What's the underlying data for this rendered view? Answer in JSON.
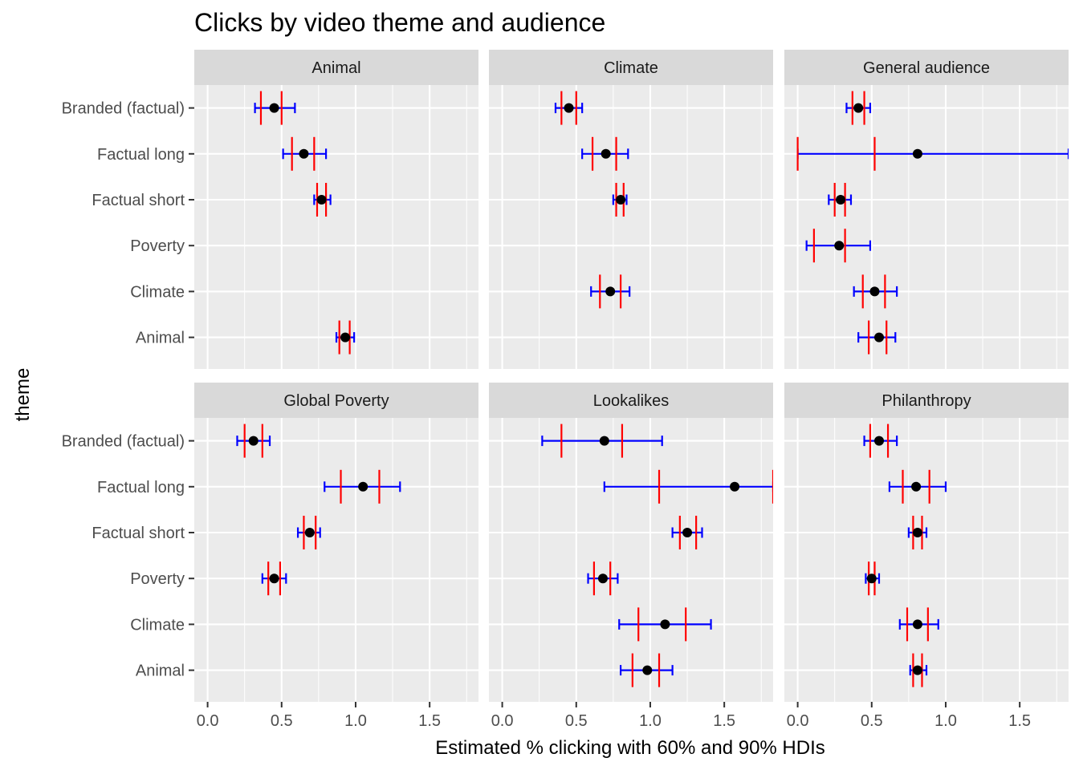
{
  "chart_data": {
    "type": "scatter",
    "title": "Clicks by video theme and audience",
    "xlabel": "Estimated % clicking with 60% and 90% HDIs",
    "ylabel": "theme",
    "xlim": [
      -0.09,
      1.83
    ],
    "x_ticks": [
      "0.0",
      "0.5",
      "1.0",
      "1.5"
    ],
    "x_tick_values": [
      0,
      0.5,
      1.0,
      1.5
    ],
    "categories": [
      "Branded (factual)",
      "Factual long",
      "Factual short",
      "Poverty",
      "Climate",
      "Animal"
    ],
    "grid": true,
    "colors": {
      "hdi90": "#0000FF",
      "hdi60": "#FF0000",
      "point": "#000000",
      "panel": "#EBEBEB",
      "strip": "#D9D9D9"
    },
    "facets": [
      {
        "name": "Animal",
        "rows": [
          {
            "theme": "Branded (factual)",
            "est": 0.45,
            "lo90": 0.32,
            "hi90": 0.59,
            "lo60": 0.36,
            "hi60": 0.5
          },
          {
            "theme": "Factual long",
            "est": 0.65,
            "lo90": 0.51,
            "hi90": 0.8,
            "lo60": 0.57,
            "hi60": 0.72
          },
          {
            "theme": "Factual short",
            "est": 0.77,
            "lo90": 0.72,
            "hi90": 0.83,
            "lo60": 0.74,
            "hi60": 0.8
          },
          {
            "theme": "Animal",
            "est": 0.93,
            "lo90": 0.87,
            "hi90": 0.99,
            "lo60": 0.89,
            "hi60": 0.96
          }
        ]
      },
      {
        "name": "Climate",
        "rows": [
          {
            "theme": "Branded (factual)",
            "est": 0.45,
            "lo90": 0.36,
            "hi90": 0.54,
            "lo60": 0.4,
            "hi60": 0.5
          },
          {
            "theme": "Factual long",
            "est": 0.7,
            "lo90": 0.54,
            "hi90": 0.85,
            "lo60": 0.61,
            "hi60": 0.77
          },
          {
            "theme": "Factual short",
            "est": 0.8,
            "lo90": 0.75,
            "hi90": 0.84,
            "lo60": 0.77,
            "hi60": 0.82
          },
          {
            "theme": "Climate",
            "est": 0.73,
            "lo90": 0.6,
            "hi90": 0.86,
            "lo60": 0.66,
            "hi60": 0.8
          }
        ]
      },
      {
        "name": "General audience",
        "rows": [
          {
            "theme": "Branded (factual)",
            "est": 0.41,
            "lo90": 0.33,
            "hi90": 0.49,
            "lo60": 0.37,
            "hi60": 0.45
          },
          {
            "theme": "Factual long",
            "est": 0.81,
            "lo90": 0.0,
            "hi90": 1.83,
            "lo60": 0.0,
            "hi60": 0.52
          },
          {
            "theme": "Factual short",
            "est": 0.29,
            "lo90": 0.21,
            "hi90": 0.36,
            "lo60": 0.25,
            "hi60": 0.32
          },
          {
            "theme": "Poverty",
            "est": 0.28,
            "lo90": 0.06,
            "hi90": 0.49,
            "lo60": 0.11,
            "hi60": 0.32
          },
          {
            "theme": "Climate",
            "est": 0.52,
            "lo90": 0.38,
            "hi90": 0.67,
            "lo60": 0.44,
            "hi60": 0.59
          },
          {
            "theme": "Animal",
            "est": 0.55,
            "lo90": 0.41,
            "hi90": 0.66,
            "lo60": 0.48,
            "hi60": 0.6
          }
        ]
      },
      {
        "name": "Global Poverty",
        "rows": [
          {
            "theme": "Branded (factual)",
            "est": 0.31,
            "lo90": 0.2,
            "hi90": 0.42,
            "lo60": 0.25,
            "hi60": 0.37
          },
          {
            "theme": "Factual long",
            "est": 1.05,
            "lo90": 0.79,
            "hi90": 1.3,
            "lo60": 0.9,
            "hi60": 1.16
          },
          {
            "theme": "Factual short",
            "est": 0.69,
            "lo90": 0.61,
            "hi90": 0.76,
            "lo60": 0.65,
            "hi60": 0.73
          },
          {
            "theme": "Poverty",
            "est": 0.45,
            "lo90": 0.37,
            "hi90": 0.53,
            "lo60": 0.41,
            "hi60": 0.49
          }
        ]
      },
      {
        "name": "Lookalikes",
        "rows": [
          {
            "theme": "Branded (factual)",
            "est": 0.69,
            "lo90": 0.27,
            "hi90": 1.08,
            "lo60": 0.4,
            "hi60": 0.81
          },
          {
            "theme": "Factual long",
            "est": 1.57,
            "lo90": 0.69,
            "hi90": 1.83,
            "lo60": 1.06,
            "hi60": 1.83
          },
          {
            "theme": "Factual short",
            "est": 1.25,
            "lo90": 1.15,
            "hi90": 1.35,
            "lo60": 1.2,
            "hi60": 1.31
          },
          {
            "theme": "Poverty",
            "est": 0.68,
            "lo90": 0.58,
            "hi90": 0.78,
            "lo60": 0.62,
            "hi60": 0.73
          },
          {
            "theme": "Climate",
            "est": 1.1,
            "lo90": 0.79,
            "hi90": 1.41,
            "lo60": 0.92,
            "hi60": 1.24
          },
          {
            "theme": "Animal",
            "est": 0.98,
            "lo90": 0.8,
            "hi90": 1.15,
            "lo60": 0.88,
            "hi60": 1.06
          }
        ]
      },
      {
        "name": "Philanthropy",
        "rows": [
          {
            "theme": "Branded (factual)",
            "est": 0.55,
            "lo90": 0.45,
            "hi90": 0.67,
            "lo60": 0.49,
            "hi60": 0.61
          },
          {
            "theme": "Factual long",
            "est": 0.8,
            "lo90": 0.62,
            "hi90": 1.0,
            "lo60": 0.71,
            "hi60": 0.89
          },
          {
            "theme": "Factual short",
            "est": 0.81,
            "lo90": 0.75,
            "hi90": 0.87,
            "lo60": 0.78,
            "hi60": 0.84
          },
          {
            "theme": "Poverty",
            "est": 0.5,
            "lo90": 0.46,
            "hi90": 0.55,
            "lo60": 0.48,
            "hi60": 0.52
          },
          {
            "theme": "Climate",
            "est": 0.81,
            "lo90": 0.69,
            "hi90": 0.95,
            "lo60": 0.74,
            "hi60": 0.88
          },
          {
            "theme": "Animal",
            "est": 0.81,
            "lo90": 0.76,
            "hi90": 0.87,
            "lo60": 0.78,
            "hi60": 0.84
          }
        ]
      }
    ]
  }
}
